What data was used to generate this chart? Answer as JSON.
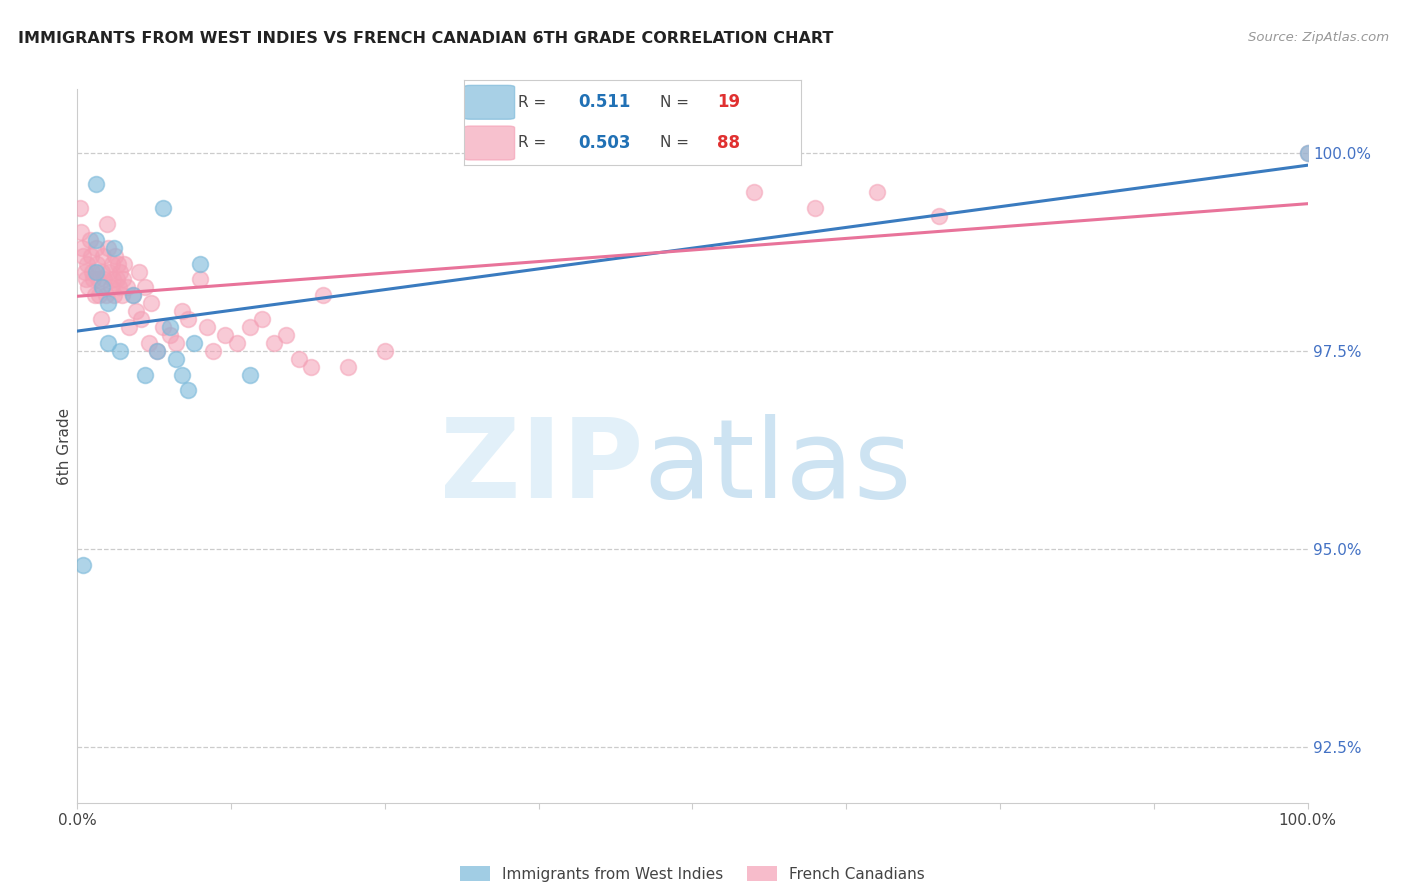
{
  "title": "IMMIGRANTS FROM WEST INDIES VS FRENCH CANADIAN 6TH GRADE CORRELATION CHART",
  "source": "Source: ZipAtlas.com",
  "ylabel_left": "6th Grade",
  "y_ticks_right": [
    92.5,
    95.0,
    97.5,
    100.0
  ],
  "y_tick_labels_right": [
    "92.5%",
    "95.0%",
    "97.5%",
    "100.0%"
  ],
  "legend_blue_R": "0.511",
  "legend_blue_N": "19",
  "legend_pink_R": "0.503",
  "legend_pink_N": "88",
  "blue_color": "#7ab8d9",
  "pink_color": "#f4a0b5",
  "blue_line_color": "#3a7bbf",
  "pink_line_color": "#e8739a",
  "ylim_min": 91.8,
  "ylim_max": 100.8,
  "xlim_min": 0.0,
  "xlim_max": 100.0,
  "blue_scatter_x": [
    0.5,
    1.5,
    1.5,
    1.5,
    2.0,
    2.5,
    2.5,
    3.0,
    3.5,
    4.5,
    5.5,
    6.5,
    7.0,
    7.5,
    8.0,
    8.5,
    9.0,
    9.5,
    10.0,
    14.0,
    100.0
  ],
  "blue_scatter_y": [
    94.8,
    98.9,
    98.5,
    99.6,
    98.3,
    97.6,
    98.1,
    98.8,
    97.5,
    98.2,
    97.2,
    97.5,
    99.3,
    97.8,
    97.4,
    97.2,
    97.0,
    97.6,
    98.6,
    97.2,
    100.0
  ],
  "pink_scatter_x": [
    0.2,
    0.3,
    0.4,
    0.5,
    0.6,
    0.7,
    0.8,
    0.9,
    1.0,
    1.1,
    1.2,
    1.3,
    1.4,
    1.5,
    1.6,
    1.7,
    1.8,
    1.9,
    2.0,
    2.1,
    2.2,
    2.3,
    2.4,
    2.5,
    2.6,
    2.7,
    2.8,
    2.9,
    3.0,
    3.1,
    3.2,
    3.3,
    3.4,
    3.5,
    3.6,
    3.7,
    3.8,
    4.0,
    4.2,
    4.5,
    4.8,
    5.0,
    5.2,
    5.5,
    5.8,
    6.0,
    6.5,
    7.0,
    7.5,
    8.0,
    8.5,
    9.0,
    10.0,
    10.5,
    11.0,
    12.0,
    13.0,
    14.0,
    15.0,
    16.0,
    17.0,
    18.0,
    19.0,
    20.0,
    22.0,
    25.0,
    55.0,
    60.0,
    65.0,
    70.0,
    100.0
  ],
  "pink_scatter_y": [
    99.3,
    99.0,
    98.8,
    98.7,
    98.5,
    98.4,
    98.6,
    98.3,
    98.9,
    98.7,
    98.5,
    98.4,
    98.2,
    98.8,
    98.6,
    98.4,
    98.2,
    97.9,
    98.5,
    98.7,
    98.4,
    98.2,
    99.1,
    98.8,
    98.5,
    98.3,
    98.6,
    98.4,
    98.2,
    98.7,
    98.4,
    98.6,
    98.3,
    98.5,
    98.2,
    98.4,
    98.6,
    98.3,
    97.8,
    98.2,
    98.0,
    98.5,
    97.9,
    98.3,
    97.6,
    98.1,
    97.5,
    97.8,
    97.7,
    97.6,
    98.0,
    97.9,
    98.4,
    97.8,
    97.5,
    97.7,
    97.6,
    97.8,
    97.9,
    97.6,
    97.7,
    97.4,
    97.3,
    98.2,
    97.3,
    97.5,
    99.5,
    99.3,
    99.5,
    99.2,
    100.0
  ]
}
